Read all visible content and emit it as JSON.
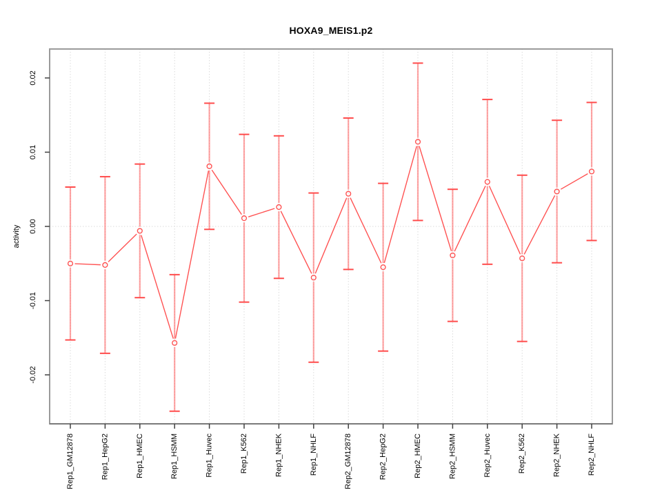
{
  "chart_data": {
    "type": "line",
    "subtype": "points-with-error-bars",
    "title": "HOXA9_MEIS1.p2",
    "xlabel": "",
    "ylabel": "activity",
    "legend": "none",
    "grid": "vertical-dotted-per-category-and-dotted-zero-line",
    "point_style": "open-circle",
    "categories": [
      "Rep1_GM12878",
      "Rep1_HepG2",
      "Rep1_HMEC",
      "Rep1_HSMM",
      "Rep1_Huvec",
      "Rep1_K562",
      "Rep1_NHEK",
      "Rep1_NHLF",
      "Rep2_GM12878",
      "Rep2_HepG2",
      "Rep2_HMEC",
      "Rep2_HSMM",
      "Rep2_Huvec",
      "Rep2_K562",
      "Rep2_NHEK",
      "Rep2_NHLF"
    ],
    "series": [
      {
        "name": "activity",
        "values": [
          -0.005,
          -0.0052,
          -0.0006,
          -0.0157,
          0.0081,
          0.0011,
          0.0026,
          -0.0069,
          0.0044,
          -0.0055,
          0.0114,
          -0.0039,
          0.006,
          -0.0043,
          0.0047,
          0.0074
        ],
        "errors": [
          0.0103,
          0.0119,
          0.009,
          0.0092,
          0.0085,
          0.0113,
          0.0096,
          0.0114,
          0.0102,
          0.0113,
          0.0106,
          0.0089,
          0.0111,
          0.0112,
          0.0096,
          0.0093
        ]
      }
    ],
    "yticks": [
      -0.02,
      -0.01,
      0,
      0.01,
      0.02
    ],
    "ytick_labels": [
      "-0.02",
      "-0.01",
      "0.00",
      "0.01",
      "0.02"
    ],
    "ylim": [
      -0.0266,
      0.0239
    ],
    "colors": {
      "line": "#ff5252",
      "point": "#ff5252",
      "error_bar": "#ff5a5a",
      "error_cap": "#ff4b4b",
      "grid": "#d9d9d9",
      "zero_line": "#d9d9d9",
      "box": "#9a9a9a",
      "axis": "#6e6e6e",
      "tick": "#404040",
      "text": "#000000"
    }
  }
}
